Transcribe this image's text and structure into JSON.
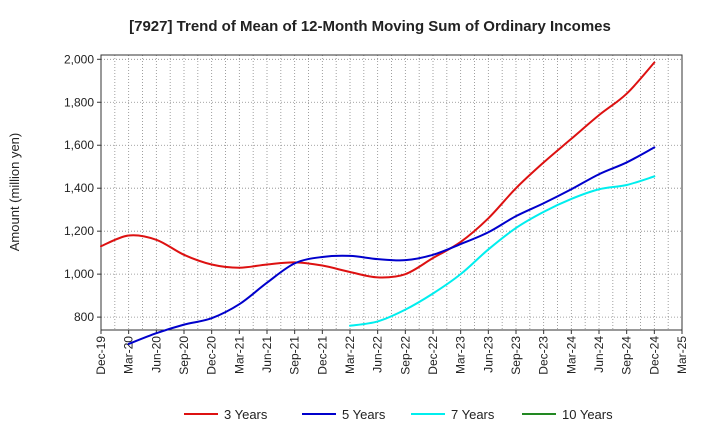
{
  "chart_data": {
    "type": "line",
    "title": "[7927]  Trend of Mean of 12-Month Moving Sum of Ordinary Incomes",
    "xlabel": "",
    "ylabel": "Amount (million yen)",
    "ylim": [
      740,
      2020
    ],
    "yticks": [
      800,
      1000,
      1200,
      1400,
      1600,
      1800,
      2000
    ],
    "ytick_labels": [
      "800",
      "1,000",
      "1,200",
      "1,400",
      "1,600",
      "1,800",
      "2,000"
    ],
    "categories": [
      "Dec-19",
      "Mar-20",
      "Jun-20",
      "Sep-20",
      "Dec-20",
      "Mar-21",
      "Jun-21",
      "Sep-21",
      "Dec-21",
      "Mar-22",
      "Jun-22",
      "Sep-22",
      "Dec-22",
      "Mar-23",
      "Jun-23",
      "Sep-23",
      "Dec-23",
      "Mar-24",
      "Jun-24",
      "Sep-24",
      "Dec-24",
      "Mar-25"
    ],
    "grid": true,
    "legend_position": "bottom",
    "series": [
      {
        "name": "3 Years",
        "color": "#dd1111",
        "values": [
          1130,
          1180,
          1160,
          1090,
          1045,
          1030,
          1045,
          1055,
          1040,
          1010,
          985,
          1000,
          1075,
          1150,
          1260,
          1400,
          1520,
          1630,
          1740,
          1840,
          1985,
          null
        ]
      },
      {
        "name": "5 Years",
        "color": "#0000cc",
        "values": [
          null,
          675,
          725,
          765,
          795,
          860,
          960,
          1050,
          1080,
          1085,
          1070,
          1065,
          1090,
          1140,
          1195,
          1270,
          1330,
          1395,
          1465,
          1520,
          1590,
          null
        ]
      },
      {
        "name": "7 Years",
        "color": "#00eeee",
        "values": [
          null,
          null,
          null,
          null,
          null,
          null,
          null,
          null,
          null,
          760,
          780,
          835,
          910,
          1000,
          1115,
          1215,
          1290,
          1350,
          1395,
          1415,
          1455,
          null
        ]
      },
      {
        "name": "10 Years",
        "color": "#228822",
        "values": [
          null,
          null,
          null,
          null,
          null,
          null,
          null,
          null,
          null,
          null,
          null,
          null,
          null,
          null,
          null,
          null,
          null,
          null,
          null,
          null,
          null,
          null
        ]
      }
    ]
  }
}
